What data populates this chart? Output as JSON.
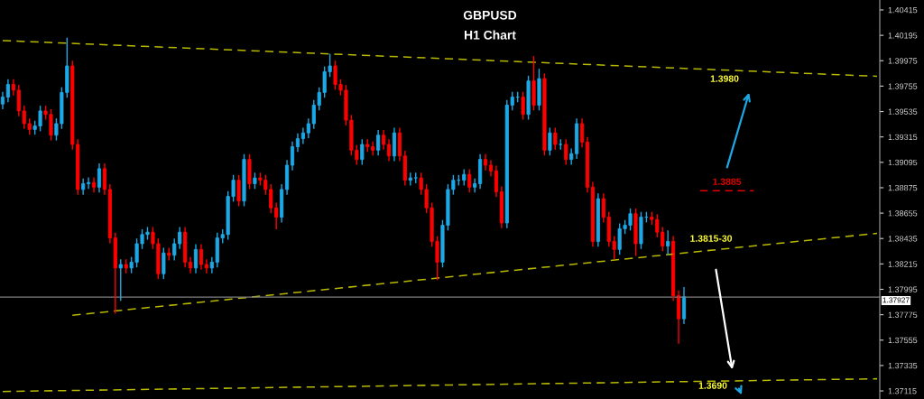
{
  "chart_data": {
    "type": "candlestick",
    "title": "GBPUSD",
    "subtitle": "H1 Chart",
    "categories": [
      null,
      null,
      null,
      null,
      null,
      null,
      null,
      null,
      null,
      null,
      null,
      null,
      null,
      null,
      null,
      null,
      null,
      null,
      null,
      null,
      null,
      null,
      null,
      null,
      null,
      null,
      null,
      null,
      null,
      null,
      null,
      null,
      null,
      null,
      null,
      null,
      null,
      null,
      null,
      null,
      null,
      null,
      null,
      null,
      null,
      null,
      null,
      null,
      null,
      null,
      null,
      null,
      null,
      null,
      null,
      null,
      null,
      null,
      null,
      null,
      null,
      null,
      null,
      null,
      null,
      null,
      null,
      null,
      null,
      null,
      null,
      null,
      null,
      null,
      null,
      null,
      null,
      null,
      null,
      null,
      null,
      null,
      null,
      null,
      null,
      null,
      null,
      null,
      null,
      null,
      null,
      null,
      null,
      null,
      null,
      null,
      null,
      null,
      null,
      null,
      null,
      null,
      null,
      null,
      null,
      null,
      null,
      null,
      null,
      null,
      null,
      null,
      null,
      null,
      null,
      null,
      null,
      null,
      null,
      null,
      null,
      null,
      null,
      null,
      null,
      null,
      null,
      null,
      null,
      null,
      null,
      null,
      null,
      null,
      null,
      null,
      null,
      null,
      null,
      null,
      null,
      null,
      null,
      null,
      null,
      null,
      null,
      null,
      null,
      null,
      null,
      null,
      null,
      null,
      null,
      null,
      null,
      null,
      null,
      null,
      null,
      null,
      null,
      null
    ],
    "colors": [
      "#1ea8e6",
      "#1ea8e6",
      "#ff0000",
      "#ff0000",
      "#ff0000",
      "#ff0000",
      "#1ea8e6",
      "#1ea8e6",
      "#ff0000",
      "#ff0000",
      "#1ea8e6",
      "#1ea8e6",
      "#1ea8e6",
      "#ff0000",
      "#ff0000",
      "#1ea8e6",
      "#1ea8e6",
      "#ff0000",
      "#1ea8e6",
      "#ff0000",
      "#ff0000",
      "#ff0000",
      "#1ea8e6",
      "#ff0000",
      "#1ea8e6",
      "#1ea8e6",
      "#1ea8e6",
      "#1ea8e6",
      "#ff0000",
      "#ff0000",
      "#1ea8e6",
      "#ff0000",
      "#1ea8e6",
      "#1ea8e6",
      "#ff0000",
      "#ff0000",
      "#1ea8e6",
      "#ff0000",
      "#ff0000",
      "#1ea8e6",
      "#1ea8e6",
      "#1ea8e6",
      "#1ea8e6",
      "#1ea8e6",
      "#ff0000",
      "#1ea8e6",
      "#ff0000",
      "#1ea8e6",
      "#ff0000",
      "#ff0000",
      "#ff0000",
      "#ff0000",
      "#1ea8e6",
      "#1ea8e6",
      "#1ea8e6",
      "#1ea8e6",
      "#1ea8e6",
      "#1ea8e6",
      "#1ea8e6",
      "#1ea8e6",
      "#1ea8e6",
      "#1ea8e6",
      "#ff0000",
      "#ff0000",
      "#ff0000",
      "#ff0000",
      "#ff0000",
      "#1ea8e6",
      "#ff0000",
      "#ff0000",
      "#1ea8e6",
      "#ff0000",
      "#ff0000",
      "#1ea8e6",
      "#ff0000",
      "#ff0000",
      "#1ea8e6",
      "#1ea8e6",
      "#ff0000",
      "#ff0000",
      "#ff0000",
      "#ff0000",
      "#1ea8e6",
      "#1ea8e6",
      "#1ea8e6",
      "#1ea8e6",
      "#1ea8e6",
      "#ff0000",
      "#1ea8e6",
      "#1ea8e6",
      "#ff0000",
      "#ff0000",
      "#ff0000",
      "#ff0000",
      "#1ea8e6",
      "#1ea8e6",
      "#1ea8e6",
      "#ff0000",
      "#1ea8e6",
      "#ff0000",
      "#1ea8e6",
      "#ff0000",
      "#1ea8e6",
      "#ff0000",
      "#1ea8e6",
      "#ff0000",
      "#1ea8e6",
      "#1ea8e6",
      "#ff0000",
      "#ff0000",
      "#ff0000",
      "#1ea8e6",
      "#ff0000",
      "#ff0000",
      "#ff0000",
      "#1ea8e6",
      "#1ea8e6",
      "#1ea8e6",
      "#ff0000",
      "#1ea8e6",
      "#1ea8e6",
      "#ff0000",
      "#ff0000",
      "#ff0000",
      "#1ea8e6",
      "#ff0000",
      "#ff0000",
      "#1ea8e6",
      null,
      null,
      null,
      null,
      null,
      null,
      null,
      null,
      null,
      null,
      null,
      null,
      null,
      null,
      null,
      null,
      null,
      null,
      null,
      null,
      null,
      null,
      null,
      null,
      null,
      null,
      null,
      null,
      null,
      null,
      null,
      null,
      null,
      null,
      null,
      null
    ],
    "ohlc": [
      [
        1.396,
        1.397,
        1.3956,
        1.3966
      ],
      [
        1.3966,
        1.3981,
        1.3962,
        1.3977
      ],
      [
        1.3977,
        1.3981,
        1.3968,
        1.3972
      ],
      [
        1.3972,
        1.3976,
        1.395,
        1.3954
      ],
      [
        1.3954,
        1.3958,
        1.3939,
        1.3943
      ],
      [
        1.3943,
        1.3947,
        1.3934,
        1.3938
      ],
      [
        1.3938,
        1.3945,
        1.3934,
        1.3941
      ],
      [
        1.3941,
        1.3958,
        1.3937,
        1.3954
      ],
      [
        1.3954,
        1.3958,
        1.3947,
        1.3951
      ],
      [
        1.3951,
        1.3955,
        1.3929,
        1.3933
      ],
      [
        1.3933,
        1.3947,
        1.3929,
        1.3943
      ],
      [
        1.3943,
        1.3974,
        1.3939,
        1.397
      ],
      [
        1.397,
        1.4017,
        1.3966,
        1.3993
      ],
      [
        1.3993,
        1.3997,
        1.3921,
        1.3925
      ],
      [
        1.3925,
        1.3929,
        1.3882,
        1.3886
      ],
      [
        1.3886,
        1.3895,
        1.3882,
        1.3891
      ],
      [
        1.3891,
        1.3896,
        1.3887,
        1.3892
      ],
      [
        1.3892,
        1.3896,
        1.3884,
        1.3888
      ],
      [
        1.3888,
        1.3908,
        1.3884,
        1.3904
      ],
      [
        1.3904,
        1.3908,
        1.3882,
        1.3886
      ],
      [
        1.3886,
        1.389,
        1.384,
        1.3844
      ],
      [
        1.3844,
        1.3848,
        1.3779,
        1.3818
      ],
      [
        1.3818,
        1.3825,
        1.379,
        1.3821
      ],
      [
        1.3821,
        1.3825,
        1.3814,
        1.3818
      ],
      [
        1.3818,
        1.3827,
        1.3814,
        1.3823
      ],
      [
        1.3823,
        1.3843,
        1.3819,
        1.3839
      ],
      [
        1.3839,
        1.3851,
        1.3835,
        1.3847
      ],
      [
        1.3847,
        1.3853,
        1.3843,
        1.3849
      ],
      [
        1.3849,
        1.3853,
        1.3835,
        1.3839
      ],
      [
        1.3839,
        1.3843,
        1.3809,
        1.3813
      ],
      [
        1.3813,
        1.3835,
        1.3809,
        1.3831
      ],
      [
        1.3831,
        1.3835,
        1.3825,
        1.3829
      ],
      [
        1.3829,
        1.3843,
        1.3825,
        1.3839
      ],
      [
        1.3839,
        1.3853,
        1.3835,
        1.3849
      ],
      [
        1.3849,
        1.3853,
        1.3819,
        1.3823
      ],
      [
        1.3823,
        1.3827,
        1.3814,
        1.3818
      ],
      [
        1.3818,
        1.3838,
        1.3814,
        1.3834
      ],
      [
        1.3834,
        1.3838,
        1.3817,
        1.3821
      ],
      [
        1.3821,
        1.3825,
        1.3814,
        1.3818
      ],
      [
        1.3818,
        1.3827,
        1.3814,
        1.3823
      ],
      [
        1.3823,
        1.3848,
        1.3819,
        1.3844
      ],
      [
        1.3844,
        1.3851,
        1.384,
        1.3847
      ],
      [
        1.3847,
        1.3884,
        1.3843,
        1.388
      ],
      [
        1.388,
        1.3898,
        1.3876,
        1.3894
      ],
      [
        1.3894,
        1.3898,
        1.3872,
        1.3876
      ],
      [
        1.3876,
        1.3916,
        1.3872,
        1.3912
      ],
      [
        1.3912,
        1.3916,
        1.3887,
        1.3891
      ],
      [
        1.3891,
        1.39,
        1.3887,
        1.3896
      ],
      [
        1.3896,
        1.39,
        1.389,
        1.3894
      ],
      [
        1.3894,
        1.3898,
        1.3882,
        1.3886
      ],
      [
        1.3886,
        1.389,
        1.3866,
        1.387
      ],
      [
        1.387,
        1.3874,
        1.3852,
        1.3862
      ],
      [
        1.3862,
        1.389,
        1.3858,
        1.3886
      ],
      [
        1.3886,
        1.3911,
        1.3882,
        1.3907
      ],
      [
        1.3907,
        1.3927,
        1.3903,
        1.3923
      ],
      [
        1.3923,
        1.3934,
        1.3919,
        1.393
      ],
      [
        1.393,
        1.3939,
        1.3926,
        1.3935
      ],
      [
        1.3935,
        1.3947,
        1.3931,
        1.3943
      ],
      [
        1.3943,
        1.3963,
        1.3939,
        1.3959
      ],
      [
        1.3959,
        1.3974,
        1.3955,
        1.397
      ],
      [
        1.397,
        1.3992,
        1.3966,
        1.3988
      ],
      [
        1.3988,
        1.4003,
        1.3984,
        1.3993
      ],
      [
        1.3993,
        1.3997,
        1.3973,
        1.3977
      ],
      [
        1.3977,
        1.3981,
        1.3968,
        1.3972
      ],
      [
        1.3972,
        1.3976,
        1.3942,
        1.3946
      ],
      [
        1.3946,
        1.395,
        1.3916,
        1.392
      ],
      [
        1.392,
        1.3924,
        1.3908,
        1.3912
      ],
      [
        1.3912,
        1.3929,
        1.3908,
        1.3925
      ],
      [
        1.3925,
        1.3929,
        1.3919,
        1.3923
      ],
      [
        1.3923,
        1.3927,
        1.3916,
        1.392
      ],
      [
        1.392,
        1.3937,
        1.3916,
        1.3933
      ],
      [
        1.3933,
        1.3937,
        1.3921,
        1.3925
      ],
      [
        1.3925,
        1.3929,
        1.3911,
        1.3915
      ],
      [
        1.3915,
        1.3939,
        1.3911,
        1.3935
      ],
      [
        1.3935,
        1.3939,
        1.3911,
        1.3915
      ],
      [
        1.3915,
        1.3919,
        1.389,
        1.3894
      ],
      [
        1.3894,
        1.39,
        1.389,
        1.3896
      ],
      [
        1.3896,
        1.39,
        1.3892,
        1.3896
      ],
      [
        1.3896,
        1.39,
        1.3882,
        1.3886
      ],
      [
        1.3886,
        1.389,
        1.3866,
        1.387
      ],
      [
        1.387,
        1.3874,
        1.3837,
        1.3841
      ],
      [
        1.3841,
        1.3845,
        1.3808,
        1.3823
      ],
      [
        1.3823,
        1.3859,
        1.3819,
        1.3855
      ],
      [
        1.3855,
        1.389,
        1.3851,
        1.3886
      ],
      [
        1.3886,
        1.3898,
        1.3882,
        1.3894
      ],
      [
        1.3894,
        1.3898,
        1.389,
        1.3894
      ],
      [
        1.3894,
        1.3903,
        1.389,
        1.3899
      ],
      [
        1.3899,
        1.3903,
        1.3884,
        1.3888
      ],
      [
        1.3888,
        1.3895,
        1.3884,
        1.3891
      ],
      [
        1.3891,
        1.3916,
        1.3887,
        1.3912
      ],
      [
        1.3912,
        1.3916,
        1.3903,
        1.3907
      ],
      [
        1.3907,
        1.3911,
        1.3898,
        1.3902
      ],
      [
        1.3902,
        1.3906,
        1.388,
        1.3884
      ],
      [
        1.3884,
        1.3888,
        1.3853,
        1.3857
      ],
      [
        1.3857,
        1.3963,
        1.3853,
        1.3959
      ],
      [
        1.3959,
        1.397,
        1.3955,
        1.3966
      ],
      [
        1.3966,
        1.397,
        1.3962,
        1.3966
      ],
      [
        1.3966,
        1.397,
        1.3947,
        1.3951
      ],
      [
        1.3951,
        1.3984,
        1.3947,
        1.398
      ],
      [
        1.398,
        1.4001,
        1.3955,
        1.3959
      ],
      [
        1.3959,
        1.399,
        1.3955,
        1.3982
      ],
      [
        1.3982,
        1.3986,
        1.3916,
        1.392
      ],
      [
        1.392,
        1.3939,
        1.3916,
        1.3935
      ],
      [
        1.3935,
        1.3939,
        1.3921,
        1.3925
      ],
      [
        1.3925,
        1.3929,
        1.3921,
        1.3925
      ],
      [
        1.3925,
        1.3929,
        1.3908,
        1.3912
      ],
      [
        1.3912,
        1.3921,
        1.3908,
        1.3917
      ],
      [
        1.3917,
        1.3947,
        1.3913,
        1.3943
      ],
      [
        1.3943,
        1.3947,
        1.3923,
        1.3927
      ],
      [
        1.3927,
        1.3931,
        1.3884,
        1.3888
      ],
      [
        1.3888,
        1.3892,
        1.3837,
        1.3841
      ],
      [
        1.3841,
        1.3882,
        1.3837,
        1.3878
      ],
      [
        1.3878,
        1.3882,
        1.3858,
        1.3862
      ],
      [
        1.3862,
        1.3866,
        1.3837,
        1.3841
      ],
      [
        1.3841,
        1.3845,
        1.3826,
        1.3834
      ],
      [
        1.3834,
        1.3856,
        1.383,
        1.3852
      ],
      [
        1.3852,
        1.3859,
        1.3848,
        1.3855
      ],
      [
        1.3855,
        1.3869,
        1.3851,
        1.3865
      ],
      [
        1.3865,
        1.3869,
        1.3829,
        1.3839
      ],
      [
        1.3839,
        1.3866,
        1.3835,
        1.3862
      ],
      [
        1.3862,
        1.3866,
        1.3858,
        1.3862
      ],
      [
        1.3862,
        1.3866,
        1.3856,
        1.386
      ],
      [
        1.386,
        1.3864,
        1.3845,
        1.3849
      ],
      [
        1.3849,
        1.3853,
        1.3833,
        1.3837
      ],
      [
        1.3837,
        1.385,
        1.383,
        1.3841
      ],
      [
        1.3841,
        1.3845,
        1.379,
        1.3794
      ],
      [
        1.3794,
        1.3798,
        1.3753,
        1.3774
      ],
      [
        1.3774,
        1.3801,
        1.377,
        1.3793
      ],
      null,
      null,
      null,
      null,
      null,
      null,
      null,
      null,
      null,
      null,
      null,
      null,
      null,
      null,
      null,
      null,
      null,
      null,
      null,
      null,
      null,
      null,
      null,
      null,
      null,
      null,
      null,
      null,
      null,
      null,
      null,
      null,
      null,
      null,
      null,
      null
    ],
    "series": [
      {
        "type": "line",
        "color": "#b8b800",
        "line_style": "dashed",
        "values": [
          1.4015,
          null,
          null,
          null,
          null,
          null,
          null,
          null,
          null,
          null,
          null,
          null,
          null,
          null,
          null,
          null,
          null,
          null,
          null,
          null,
          null,
          null,
          null,
          null,
          null,
          null,
          null,
          null,
          null,
          null,
          null,
          null,
          null,
          null,
          null,
          null,
          null,
          null,
          null,
          null,
          null,
          null,
          null,
          null,
          null,
          null,
          null,
          null,
          null,
          null,
          null,
          null,
          null,
          null,
          null,
          null,
          null,
          null,
          null,
          null,
          null,
          null,
          null,
          null,
          null,
          null,
          null,
          null,
          null,
          null,
          null,
          null,
          null,
          null,
          null,
          null,
          null,
          null,
          null,
          null,
          null,
          null,
          null,
          null,
          null,
          null,
          null,
          null,
          null,
          null,
          null,
          null,
          null,
          null,
          null,
          null,
          null,
          null,
          null,
          null,
          null,
          null,
          null,
          null,
          null,
          null,
          null,
          null,
          null,
          null,
          null,
          null,
          null,
          null,
          null,
          null,
          null,
          null,
          null,
          null,
          null,
          null,
          null,
          null,
          null,
          null,
          null,
          null,
          null,
          null,
          null,
          null,
          null,
          null,
          null,
          null,
          null,
          null,
          null,
          null,
          null,
          null,
          null,
          null,
          null,
          null,
          null,
          null,
          null,
          null,
          null,
          null,
          null,
          null,
          null,
          null,
          null,
          null,
          null,
          null,
          null,
          null,
          null,
          1.3984
        ]
      },
      {
        "type": "line",
        "color": "#b8b800",
        "line_style": "dashed",
        "values": [
          null,
          null,
          null,
          null,
          null,
          null,
          null,
          null,
          null,
          null,
          null,
          null,
          null,
          1.3777,
          null,
          null,
          null,
          null,
          null,
          null,
          null,
          null,
          null,
          null,
          null,
          null,
          null,
          null,
          null,
          null,
          null,
          null,
          null,
          null,
          null,
          null,
          null,
          null,
          null,
          null,
          null,
          null,
          null,
          null,
          null,
          null,
          null,
          null,
          null,
          null,
          null,
          null,
          null,
          null,
          null,
          null,
          null,
          null,
          null,
          null,
          null,
          null,
          null,
          null,
          null,
          null,
          null,
          null,
          null,
          null,
          null,
          null,
          null,
          null,
          null,
          null,
          null,
          null,
          null,
          null,
          null,
          null,
          null,
          null,
          null,
          null,
          null,
          null,
          null,
          null,
          null,
          null,
          null,
          null,
          null,
          null,
          null,
          null,
          null,
          null,
          null,
          null,
          null,
          null,
          null,
          null,
          null,
          null,
          null,
          null,
          null,
          null,
          null,
          null,
          null,
          null,
          null,
          null,
          null,
          null,
          null,
          null,
          null,
          null,
          null,
          null,
          null,
          null,
          null,
          null,
          null,
          null,
          null,
          null,
          null,
          null,
          null,
          null,
          null,
          null,
          null,
          null,
          null,
          null,
          null,
          null,
          null,
          null,
          null,
          null,
          null,
          null,
          null,
          null,
          null,
          null,
          null,
          null,
          null,
          null,
          null,
          null,
          null,
          1.3848
        ]
      },
      {
        "type": "line",
        "color": "#b8b800",
        "line_style": "dashed",
        "values": [
          1.3711,
          null,
          null,
          null,
          null,
          null,
          null,
          null,
          null,
          null,
          null,
          null,
          null,
          null,
          null,
          null,
          null,
          null,
          null,
          null,
          null,
          null,
          null,
          null,
          null,
          null,
          null,
          null,
          null,
          null,
          null,
          null,
          null,
          null,
          null,
          null,
          null,
          null,
          null,
          null,
          null,
          null,
          null,
          null,
          null,
          null,
          null,
          null,
          null,
          null,
          null,
          null,
          null,
          null,
          null,
          null,
          null,
          null,
          null,
          null,
          null,
          null,
          null,
          null,
          null,
          null,
          null,
          null,
          null,
          null,
          null,
          null,
          null,
          null,
          null,
          null,
          null,
          null,
          null,
          null,
          null,
          null,
          null,
          null,
          null,
          null,
          null,
          null,
          null,
          null,
          null,
          null,
          null,
          null,
          null,
          null,
          null,
          null,
          null,
          null,
          null,
          null,
          null,
          null,
          null,
          null,
          null,
          null,
          null,
          null,
          null,
          null,
          null,
          null,
          null,
          null,
          null,
          null,
          null,
          null,
          null,
          null,
          null,
          null,
          null,
          null,
          null,
          null,
          null,
          null,
          null,
          null,
          null,
          null,
          null,
          null,
          null,
          null,
          null,
          null,
          null,
          null,
          null,
          null,
          null,
          null,
          null,
          null,
          null,
          null,
          null,
          null,
          null,
          null,
          null,
          null,
          null,
          null,
          null,
          null,
          null,
          null,
          null,
          1.3722
        ]
      },
      {
        "type": "line",
        "name": "1.3885",
        "color": "#e00000",
        "line_style": "dashed",
        "values": [
          null,
          null,
          null,
          null,
          null,
          null,
          null,
          null,
          null,
          null,
          null,
          null,
          null,
          null,
          null,
          null,
          null,
          null,
          null,
          null,
          null,
          null,
          null,
          null,
          null,
          null,
          null,
          null,
          null,
          null,
          null,
          null,
          null,
          null,
          null,
          null,
          null,
          null,
          null,
          null,
          null,
          null,
          null,
          null,
          null,
          null,
          null,
          null,
          null,
          null,
          null,
          null,
          null,
          null,
          null,
          null,
          null,
          null,
          null,
          null,
          null,
          null,
          null,
          null,
          null,
          null,
          null,
          null,
          null,
          null,
          null,
          null,
          null,
          null,
          null,
          null,
          null,
          null,
          null,
          null,
          null,
          null,
          null,
          null,
          null,
          null,
          null,
          null,
          null,
          null,
          null,
          null,
          null,
          null,
          null,
          null,
          null,
          null,
          null,
          null,
          null,
          null,
          null,
          null,
          null,
          null,
          null,
          null,
          null,
          null,
          null,
          null,
          null,
          null,
          null,
          null,
          null,
          null,
          null,
          null,
          null,
          null,
          null,
          null,
          null,
          null,
          null,
          null,
          null,
          null,
          1.3885,
          null,
          null,
          null,
          null,
          null,
          null,
          null,
          null,
          null,
          1.3885,
          null,
          null,
          null,
          null,
          null,
          null,
          null,
          null,
          null,
          null,
          null,
          null,
          null,
          null,
          null,
          null,
          null,
          null,
          null,
          null,
          null,
          null,
          null
        ]
      }
    ],
    "annotations": [
      "1.3980",
      "1.3815-30",
      "1.3690"
    ],
    "ref_lines": [
      {
        "axis": "y",
        "value": 1.37927,
        "label": "1.37927",
        "color": "#808080",
        "line_style": "solid"
      }
    ],
    "ylim": [
      1.37045,
      1.40501
    ],
    "yticks": [
      1.40415,
      1.40195,
      1.39975,
      1.39755,
      1.39535,
      1.39315,
      1.39095,
      1.38875,
      1.38655,
      1.38435,
      1.38215,
      1.37995,
      1.37775,
      1.37555,
      1.37335,
      1.37115
    ],
    "tick_labels": "y",
    "grid": false,
    "legend": false
  }
}
